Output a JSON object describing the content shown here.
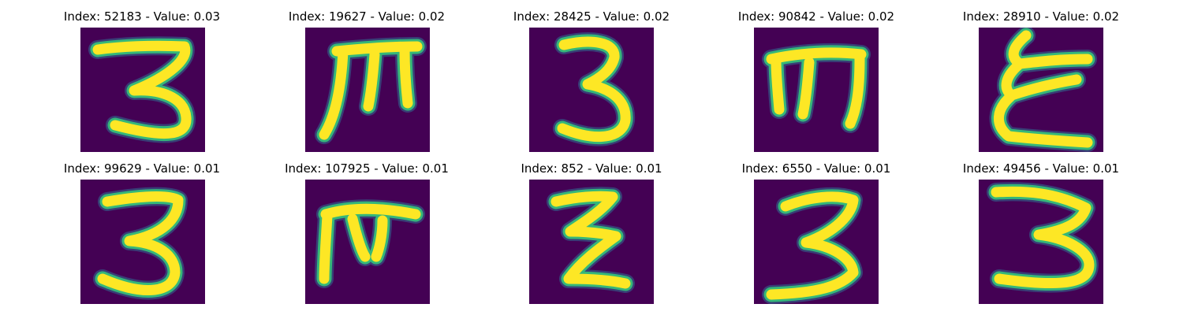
{
  "colors": {
    "background": "#440154",
    "stroke_core": "#fde725",
    "stroke_edge": "#35b779",
    "stroke_halo": "#31688e"
  },
  "panels": [
    {
      "title": "Index: 52183 - Value: 0.03",
      "glyph": "digit-three"
    },
    {
      "title": "Index: 19627 - Value: 0.02",
      "glyph": "rotated-e"
    },
    {
      "title": "Index: 28425 - Value: 0.02",
      "glyph": "digit-three"
    },
    {
      "title": "Index: 90842 - Value: 0.02",
      "glyph": "rotated-e"
    },
    {
      "title": "Index: 28910 - Value: 0.02",
      "glyph": "sigma-e"
    },
    {
      "title": "Index: 99629 - Value: 0.01",
      "glyph": "digit-three"
    },
    {
      "title": "Index: 107925 - Value: 0.01",
      "glyph": "rotated-e"
    },
    {
      "title": "Index: 852 - Value: 0.01",
      "glyph": "zigzag"
    },
    {
      "title": "Index: 6550 - Value: 0.01",
      "glyph": "digit-three"
    },
    {
      "title": "Index: 49456 - Value: 0.01",
      "glyph": "digit-three"
    }
  ]
}
